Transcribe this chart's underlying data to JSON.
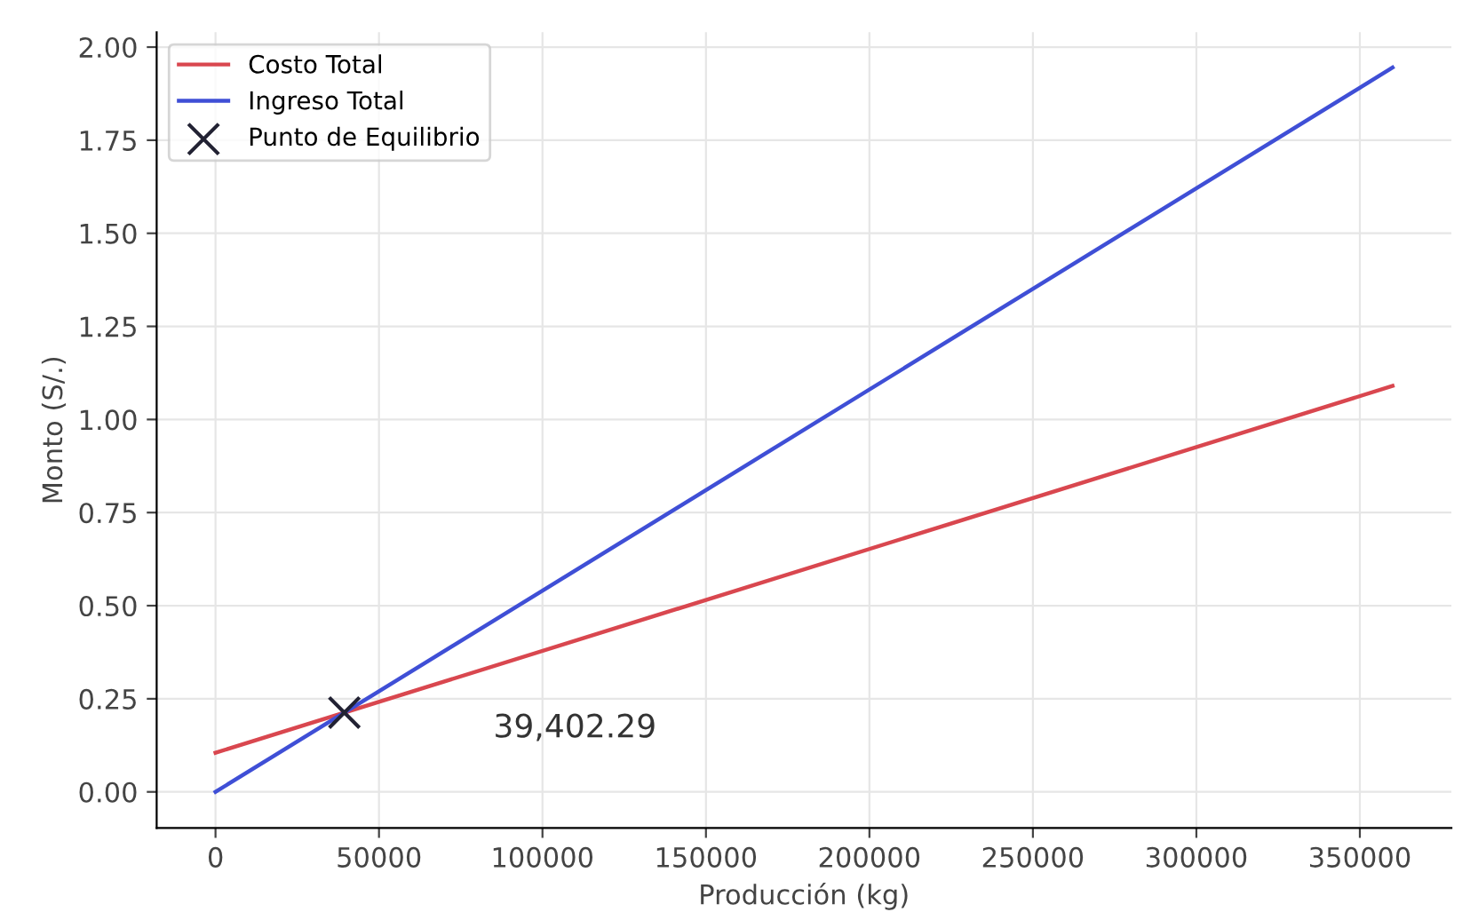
{
  "chart_data": {
    "type": "line",
    "xlabel": "Producción (kg)",
    "ylabel": "Monto (S/.)",
    "series": [
      {
        "name": "Costo Total",
        "color": "#d9474f",
        "x": [
          0,
          360000
        ],
        "values": [
          0.105,
          1.09
        ]
      },
      {
        "name": "Ingreso Total",
        "color": "#3f4fd6",
        "x": [
          0,
          360000
        ],
        "values": [
          0,
          1.945
        ]
      },
      {
        "name": "Punto de Equilibrio",
        "type": "scatter",
        "marker": "cross",
        "color": "#222233",
        "x": [
          39402.29
        ],
        "values": [
          0.213
        ]
      }
    ],
    "annotations": [
      "39,402.29"
    ],
    "xlim": [
      -18000,
      378000
    ],
    "ylim": [
      -0.097,
      2.04
    ],
    "xticks": [
      0,
      50000,
      100000,
      150000,
      200000,
      250000,
      300000,
      350000
    ],
    "yticks": [
      {
        "value": 0,
        "label": "0.00"
      },
      {
        "value": 0.25,
        "label": "0.25"
      },
      {
        "value": 0.5,
        "label": "0.50"
      },
      {
        "value": 0.75,
        "label": "0.75"
      },
      {
        "value": 1,
        "label": "1.00"
      },
      {
        "value": 1.25,
        "label": "1.25"
      },
      {
        "value": 1.5,
        "label": "1.50"
      },
      {
        "value": 1.75,
        "label": "1.75"
      },
      {
        "value": 2,
        "label": "2.00"
      }
    ],
    "grid": true,
    "legend": "top left"
  }
}
